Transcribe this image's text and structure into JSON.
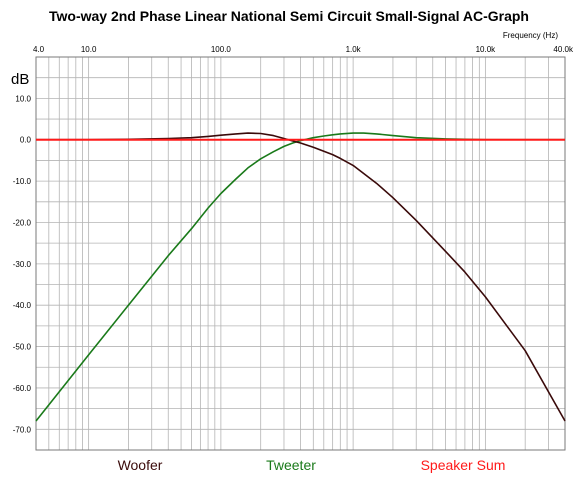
{
  "chart_data": {
    "type": "line",
    "title": "Two-way 2nd  Phase Linear National Semi Circuit Small-Signal AC-Graph",
    "xlabel": "Frequency   (Hz)",
    "ylabel": "dB",
    "x_scale": "log",
    "xlim": [
      4.0,
      40000
    ],
    "ylim": [
      -75,
      20
    ],
    "x_ticks": [
      {
        "value": 4.0,
        "label": "4.0"
      },
      {
        "value": 10,
        "label": "10.0"
      },
      {
        "value": 100,
        "label": "100.0"
      },
      {
        "value": 1000,
        "label": "1.0k"
      },
      {
        "value": 10000,
        "label": "10.0k"
      },
      {
        "value": 40000,
        "label": "40.0k"
      }
    ],
    "y_ticks": [
      {
        "value": 10,
        "label": "10.0"
      },
      {
        "value": 0,
        "label": "0.0"
      },
      {
        "value": -10,
        "label": "-10.0"
      },
      {
        "value": -20,
        "label": "-20.0"
      },
      {
        "value": -30,
        "label": "-30.0"
      },
      {
        "value": -40,
        "label": "-40.0"
      },
      {
        "value": -50,
        "label": "-50.0"
      },
      {
        "value": -60,
        "label": "-60.0"
      },
      {
        "value": -70,
        "label": "-70.0"
      }
    ],
    "grid": true,
    "legend_position": "bottom",
    "series": [
      {
        "name": "Woofer",
        "color": "#3a0a0a",
        "x": [
          4,
          10,
          20,
          40,
          60,
          80,
          100,
          130,
          160,
          200,
          250,
          300,
          350,
          400,
          500,
          600,
          700,
          800,
          1000,
          1500,
          2000,
          3000,
          5000,
          7000,
          10000,
          20000,
          40000
        ],
        "y": [
          0,
          0,
          0.1,
          0.3,
          0.5,
          0.8,
          1.1,
          1.4,
          1.6,
          1.5,
          1.0,
          0.3,
          -0.3,
          -0.8,
          -1.8,
          -2.8,
          -3.6,
          -4.5,
          -6.2,
          -10.5,
          -14,
          -19.5,
          -27,
          -32,
          -38,
          -51,
          -68
        ]
      },
      {
        "name": "Tweeter",
        "color": "#1a7a1a",
        "x": [
          4,
          10,
          20,
          40,
          60,
          80,
          100,
          130,
          160,
          200,
          250,
          300,
          350,
          400,
          500,
          600,
          700,
          800,
          1000,
          1200,
          1500,
          2000,
          3000,
          5000,
          7000,
          10000,
          40000
        ],
        "y": [
          -68,
          -52,
          -40,
          -28,
          -21.5,
          -16.5,
          -13,
          -9.5,
          -6.8,
          -4.6,
          -2.9,
          -1.6,
          -0.8,
          -0.2,
          0.5,
          0.9,
          1.2,
          1.4,
          1.6,
          1.6,
          1.4,
          1.0,
          0.5,
          0.2,
          0.1,
          0,
          0
        ]
      },
      {
        "name": "Speaker Sum",
        "color": "#ff1a1a",
        "x": [
          4,
          40000
        ],
        "y": [
          0,
          0
        ]
      }
    ]
  }
}
